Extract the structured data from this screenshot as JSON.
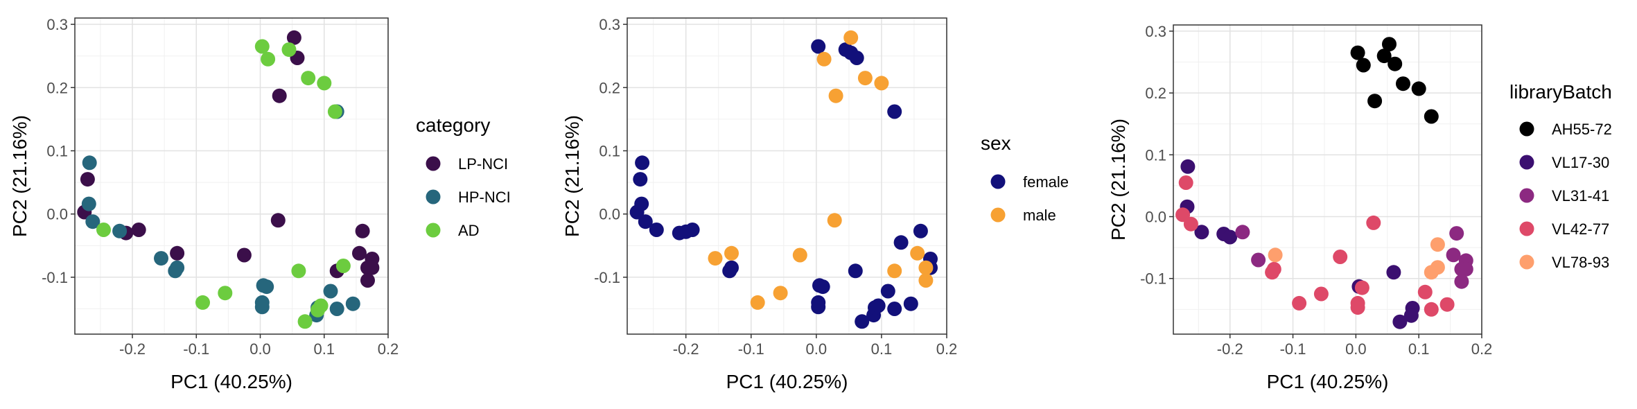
{
  "chart_data": [
    {
      "type": "scatter",
      "xlabel": "PC1 (40.25%)",
      "ylabel": "PC2 (21.16%)",
      "xlim": [
        -0.29,
        0.2
      ],
      "ylim": [
        -0.19,
        0.31
      ],
      "xticks": [
        -0.2,
        -0.1,
        0.0,
        0.1,
        0.2
      ],
      "xtick_labels": [
        "-0.2",
        "-0.1",
        "0.0",
        "0.1",
        "0.2"
      ],
      "yticks": [
        -0.1,
        0.0,
        0.1,
        0.2,
        0.3
      ],
      "ytick_labels": [
        "-0.1",
        "0.0",
        "0.1",
        "0.2",
        "0.3"
      ],
      "grid": true,
      "legend": {
        "title": "category",
        "position": "right",
        "entries": [
          {
            "label": "LP-NCI",
            "color": "#3b0f4a"
          },
          {
            "label": "HP-NCI",
            "color": "#26667c"
          },
          {
            "label": "AD",
            "color": "#6ccc3f"
          }
        ]
      },
      "series": [
        {
          "name": "LP-NCI",
          "color": "#3b0f4a",
          "points": [
            [
              0.053,
              0.279
            ],
            [
              0.058,
              0.247
            ],
            [
              0.03,
              0.187
            ],
            [
              0.028,
              -0.01
            ],
            [
              -0.27,
              0.055
            ],
            [
              -0.275,
              0.003
            ],
            [
              -0.21,
              -0.03
            ],
            [
              -0.19,
              -0.025
            ],
            [
              -0.13,
              -0.062
            ],
            [
              -0.025,
              -0.065
            ],
            [
              0.12,
              -0.09
            ],
            [
              0.16,
              -0.027
            ],
            [
              0.155,
              -0.062
            ],
            [
              0.175,
              -0.071
            ],
            [
              0.168,
              -0.085
            ],
            [
              0.175,
              -0.085
            ],
            [
              0.168,
              -0.105
            ]
          ]
        },
        {
          "name": "HP-NCI",
          "color": "#26667c",
          "points": [
            [
              -0.267,
              0.081
            ],
            [
              -0.268,
              0.016
            ],
            [
              -0.262,
              -0.012
            ],
            [
              -0.22,
              -0.027
            ],
            [
              -0.155,
              -0.07
            ],
            [
              -0.13,
              -0.085
            ],
            [
              -0.133,
              -0.09
            ],
            [
              0.005,
              -0.113
            ],
            [
              0.01,
              -0.115
            ],
            [
              0.003,
              -0.14
            ],
            [
              0.003,
              -0.147
            ],
            [
              0.11,
              -0.122
            ],
            [
              0.12,
              -0.15
            ],
            [
              0.145,
              -0.142
            ],
            [
              0.09,
              -0.148
            ],
            [
              0.088,
              -0.16
            ],
            [
              0.12,
              0.162
            ]
          ]
        },
        {
          "name": "AD",
          "color": "#6ccc3f",
          "points": [
            [
              0.003,
              0.265
            ],
            [
              0.012,
              0.245
            ],
            [
              0.045,
              0.26
            ],
            [
              0.075,
              0.215
            ],
            [
              0.1,
              0.207
            ],
            [
              0.117,
              0.162
            ],
            [
              -0.245,
              -0.025
            ],
            [
              -0.09,
              -0.14
            ],
            [
              -0.055,
              -0.125
            ],
            [
              0.06,
              -0.09
            ],
            [
              0.13,
              -0.082
            ],
            [
              0.095,
              -0.145
            ],
            [
              0.09,
              -0.152
            ],
            [
              0.07,
              -0.17
            ]
          ]
        }
      ]
    },
    {
      "type": "scatter",
      "xlabel": "PC1 (40.25%)",
      "ylabel": "PC2 (21.16%)",
      "xlim": [
        -0.29,
        0.2
      ],
      "ylim": [
        -0.19,
        0.31
      ],
      "xticks": [
        -0.2,
        -0.1,
        0.0,
        0.1,
        0.2
      ],
      "xtick_labels": [
        "-0.2",
        "-0.1",
        "0.0",
        "0.1",
        "0.2"
      ],
      "yticks": [
        -0.1,
        0.0,
        0.1,
        0.2,
        0.3
      ],
      "ytick_labels": [
        "-0.1",
        "0.0",
        "0.1",
        "0.2",
        "0.3"
      ],
      "grid": true,
      "legend": {
        "title": "sex",
        "position": "right",
        "entries": [
          {
            "label": "female",
            "color": "#12107a"
          },
          {
            "label": "male",
            "color": "#f7a133"
          }
        ]
      },
      "series": [
        {
          "name": "female",
          "color": "#12107a",
          "points": [
            [
              0.003,
              0.265
            ],
            [
              0.045,
              0.26
            ],
            [
              0.053,
              0.255
            ],
            [
              0.062,
              0.247
            ],
            [
              0.12,
              0.162
            ],
            [
              -0.267,
              0.081
            ],
            [
              -0.27,
              0.055
            ],
            [
              -0.268,
              0.016
            ],
            [
              -0.275,
              0.003
            ],
            [
              -0.262,
              -0.012
            ],
            [
              -0.245,
              -0.025
            ],
            [
              -0.21,
              -0.03
            ],
            [
              -0.19,
              -0.025
            ],
            [
              -0.2,
              -0.028
            ],
            [
              -0.13,
              -0.085
            ],
            [
              -0.133,
              -0.09
            ],
            [
              0.005,
              -0.113
            ],
            [
              0.01,
              -0.115
            ],
            [
              0.003,
              -0.14
            ],
            [
              0.003,
              -0.147
            ],
            [
              0.06,
              -0.09
            ],
            [
              0.088,
              -0.16
            ],
            [
              0.09,
              -0.148
            ],
            [
              0.095,
              -0.145
            ],
            [
              0.11,
              -0.122
            ],
            [
              0.12,
              -0.15
            ],
            [
              0.13,
              -0.045
            ],
            [
              0.145,
              -0.142
            ],
            [
              0.16,
              -0.027
            ],
            [
              0.175,
              -0.071
            ],
            [
              0.175,
              -0.085
            ],
            [
              0.07,
              -0.17
            ]
          ]
        },
        {
          "name": "male",
          "color": "#f7a133",
          "points": [
            [
              0.053,
              0.279
            ],
            [
              0.012,
              0.245
            ],
            [
              0.075,
              0.215
            ],
            [
              0.1,
              0.207
            ],
            [
              0.03,
              0.187
            ],
            [
              0.028,
              -0.01
            ],
            [
              -0.155,
              -0.07
            ],
            [
              -0.13,
              -0.062
            ],
            [
              -0.09,
              -0.14
            ],
            [
              -0.055,
              -0.125
            ],
            [
              -0.025,
              -0.065
            ],
            [
              0.12,
              -0.09
            ],
            [
              0.155,
              -0.062
            ],
            [
              0.168,
              -0.085
            ],
            [
              0.168,
              -0.105
            ]
          ]
        }
      ]
    },
    {
      "type": "scatter",
      "xlabel": "PC1 (40.25%)",
      "ylabel": "PC2 (21.16%)",
      "xlim": [
        -0.29,
        0.2
      ],
      "ylim": [
        -0.19,
        0.31
      ],
      "xticks": [
        -0.2,
        -0.1,
        0.0,
        0.1,
        0.2
      ],
      "xtick_labels": [
        "-0.2",
        "-0.1",
        "0.0",
        "0.1",
        "0.2"
      ],
      "yticks": [
        -0.1,
        0.0,
        0.1,
        0.2,
        0.3
      ],
      "ytick_labels": [
        "-0.1",
        "0.0",
        "0.1",
        "0.2",
        "0.3"
      ],
      "grid": true,
      "legend": {
        "title": "libraryBatch",
        "position": "right",
        "entries": [
          {
            "label": "AH55-72",
            "color": "#000000"
          },
          {
            "label": "VL17-30",
            "color": "#3b0f70"
          },
          {
            "label": "VL31-41",
            "color": "#8c2981"
          },
          {
            "label": "VL42-77",
            "color": "#de4968"
          },
          {
            "label": "VL78-93",
            "color": "#fe9f6d"
          }
        ]
      },
      "series": [
        {
          "name": "AH55-72",
          "color": "#000000",
          "points": [
            [
              0.003,
              0.265
            ],
            [
              0.012,
              0.245
            ],
            [
              0.045,
              0.26
            ],
            [
              0.053,
              0.279
            ],
            [
              0.062,
              0.247
            ],
            [
              0.075,
              0.215
            ],
            [
              0.1,
              0.207
            ],
            [
              0.03,
              0.187
            ],
            [
              0.12,
              0.162
            ]
          ]
        },
        {
          "name": "VL17-30",
          "color": "#3b0f70",
          "points": [
            [
              -0.267,
              0.081
            ],
            [
              -0.268,
              0.016
            ],
            [
              -0.245,
              -0.025
            ],
            [
              -0.21,
              -0.028
            ],
            [
              -0.2,
              -0.033
            ],
            [
              0.06,
              -0.09
            ],
            [
              0.09,
              -0.148
            ],
            [
              0.088,
              -0.16
            ],
            [
              0.07,
              -0.17
            ],
            [
              0.005,
              -0.113
            ]
          ]
        },
        {
          "name": "VL31-41",
          "color": "#8c2981",
          "points": [
            [
              -0.18,
              -0.025
            ],
            [
              -0.155,
              -0.07
            ],
            [
              0.16,
              -0.027
            ],
            [
              0.155,
              -0.062
            ],
            [
              0.175,
              -0.071
            ],
            [
              0.168,
              -0.085
            ],
            [
              0.175,
              -0.085
            ],
            [
              0.168,
              -0.105
            ]
          ]
        },
        {
          "name": "VL42-77",
          "color": "#de4968",
          "points": [
            [
              -0.27,
              0.055
            ],
            [
              -0.275,
              0.003
            ],
            [
              -0.262,
              -0.012
            ],
            [
              -0.13,
              -0.085
            ],
            [
              -0.133,
              -0.09
            ],
            [
              -0.09,
              -0.14
            ],
            [
              -0.055,
              -0.125
            ],
            [
              -0.025,
              -0.065
            ],
            [
              0.028,
              -0.01
            ],
            [
              0.01,
              -0.115
            ],
            [
              0.003,
              -0.14
            ],
            [
              0.003,
              -0.147
            ],
            [
              0.11,
              -0.122
            ],
            [
              0.12,
              -0.15
            ],
            [
              0.145,
              -0.142
            ]
          ]
        },
        {
          "name": "VL78-93",
          "color": "#fe9f6d",
          "points": [
            [
              -0.128,
              -0.062
            ],
            [
              0.13,
              -0.045
            ],
            [
              0.13,
              -0.082
            ],
            [
              0.12,
              -0.09
            ]
          ]
        }
      ]
    }
  ]
}
